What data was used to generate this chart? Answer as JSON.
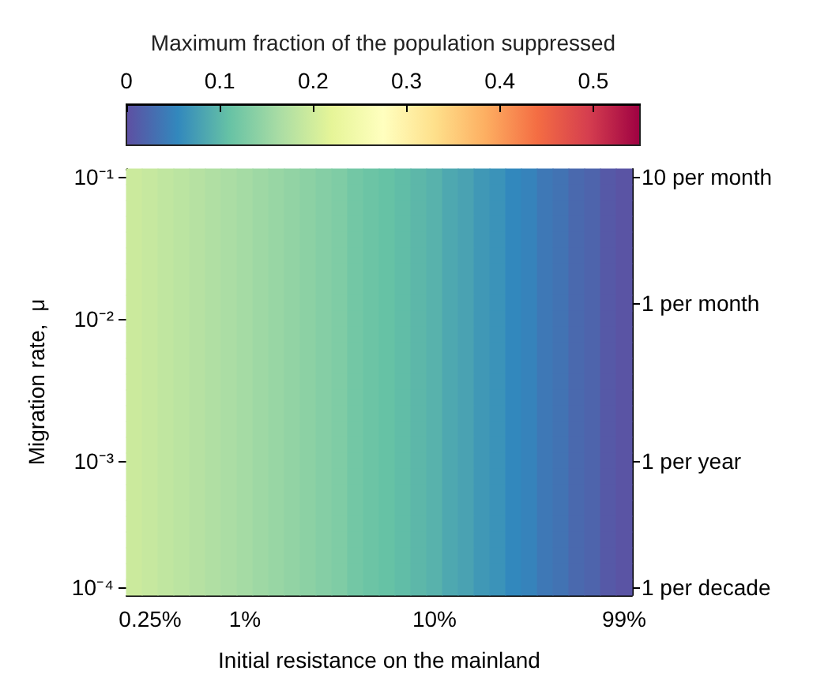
{
  "chart_data": {
    "type": "heatmap",
    "xlabel": "Initial resistance on the mainland",
    "ylabel": "Migration rate,  μ",
    "clabel": "Maximum fraction of the population suppressed",
    "categories": [
      null,
      "0.25%",
      null,
      null,
      null,
      null,
      null,
      "1%",
      null,
      null,
      null,
      null,
      null,
      null,
      null,
      null,
      null,
      null,
      null,
      "10%",
      null,
      null,
      null,
      null,
      null,
      null,
      null,
      null,
      null,
      null,
      null,
      "99%"
    ],
    "y_categories": [
      "10⁻¹",
      null,
      null,
      null,
      null,
      null,
      null,
      null,
      null,
      "10⁻²",
      null,
      null,
      null,
      null,
      null,
      null,
      null,
      null,
      "10⁻³",
      null,
      null,
      null,
      null,
      null,
      null,
      null,
      "10⁻⁴"
    ],
    "y2_categories": [
      "10 per month",
      null,
      null,
      null,
      null,
      null,
      null,
      null,
      "1 per month",
      null,
      null,
      null,
      null,
      null,
      null,
      null,
      null,
      null,
      "1 per year",
      null,
      null,
      null,
      null,
      null,
      null,
      null,
      "1 per decade"
    ],
    "cells": [
      [
        0.195,
        0.19,
        0.185,
        0.18,
        0.175,
        0.17,
        0.165,
        0.16,
        0.155,
        0.15,
        0.145,
        0.14,
        0.135,
        0.13,
        0.12,
        0.115,
        0.11,
        0.105,
        0.1,
        0.095,
        0.085,
        0.08,
        0.07,
        0.065,
        0.055,
        0.05,
        0.04,
        0.035,
        0.025,
        0.02,
        0.01,
        0.005
      ],
      [
        0.195,
        0.19,
        0.185,
        0.18,
        0.175,
        0.17,
        0.165,
        0.16,
        0.155,
        0.15,
        0.145,
        0.14,
        0.135,
        0.13,
        0.12,
        0.115,
        0.11,
        0.105,
        0.1,
        0.095,
        0.085,
        0.08,
        0.07,
        0.065,
        0.055,
        0.05,
        0.04,
        0.035,
        0.025,
        0.02,
        0.01,
        0.005
      ],
      [
        0.195,
        0.19,
        0.185,
        0.18,
        0.175,
        0.17,
        0.165,
        0.16,
        0.155,
        0.15,
        0.145,
        0.14,
        0.135,
        0.13,
        0.12,
        0.115,
        0.11,
        0.105,
        0.1,
        0.095,
        0.085,
        0.08,
        0.07,
        0.065,
        0.055,
        0.05,
        0.04,
        0.035,
        0.025,
        0.02,
        0.01,
        0.005
      ],
      [
        0.195,
        0.19,
        0.185,
        0.18,
        0.175,
        0.17,
        0.165,
        0.16,
        0.155,
        0.15,
        0.145,
        0.14,
        0.135,
        0.13,
        0.12,
        0.115,
        0.11,
        0.105,
        0.1,
        0.095,
        0.085,
        0.08,
        0.07,
        0.065,
        0.055,
        0.05,
        0.04,
        0.035,
        0.025,
        0.02,
        0.01,
        0.005
      ],
      [
        0.195,
        0.19,
        0.185,
        0.18,
        0.175,
        0.17,
        0.165,
        0.16,
        0.155,
        0.15,
        0.145,
        0.14,
        0.135,
        0.13,
        0.12,
        0.115,
        0.11,
        0.105,
        0.1,
        0.095,
        0.085,
        0.08,
        0.07,
        0.065,
        0.055,
        0.05,
        0.04,
        0.035,
        0.025,
        0.02,
        0.01,
        0.005
      ],
      [
        0.195,
        0.19,
        0.185,
        0.18,
        0.175,
        0.17,
        0.165,
        0.16,
        0.155,
        0.15,
        0.145,
        0.14,
        0.135,
        0.13,
        0.12,
        0.115,
        0.11,
        0.105,
        0.1,
        0.095,
        0.085,
        0.08,
        0.07,
        0.065,
        0.055,
        0.05,
        0.04,
        0.035,
        0.025,
        0.02,
        0.01,
        0.005
      ],
      [
        0.195,
        0.19,
        0.185,
        0.18,
        0.175,
        0.17,
        0.165,
        0.16,
        0.155,
        0.15,
        0.145,
        0.14,
        0.135,
        0.13,
        0.12,
        0.115,
        0.11,
        0.105,
        0.1,
        0.095,
        0.085,
        0.08,
        0.07,
        0.065,
        0.055,
        0.05,
        0.04,
        0.035,
        0.025,
        0.02,
        0.01,
        0.005
      ],
      [
        0.195,
        0.19,
        0.185,
        0.18,
        0.175,
        0.17,
        0.165,
        0.16,
        0.155,
        0.15,
        0.145,
        0.14,
        0.135,
        0.13,
        0.12,
        0.115,
        0.11,
        0.105,
        0.1,
        0.095,
        0.085,
        0.08,
        0.07,
        0.065,
        0.055,
        0.05,
        0.04,
        0.035,
        0.025,
        0.02,
        0.01,
        0.005
      ],
      [
        0.195,
        0.19,
        0.185,
        0.18,
        0.175,
        0.17,
        0.165,
        0.16,
        0.155,
        0.15,
        0.145,
        0.14,
        0.135,
        0.13,
        0.12,
        0.115,
        0.11,
        0.105,
        0.1,
        0.095,
        0.085,
        0.08,
        0.07,
        0.065,
        0.055,
        0.05,
        0.04,
        0.035,
        0.025,
        0.02,
        0.01,
        0.005
      ],
      [
        0.195,
        0.19,
        0.185,
        0.18,
        0.175,
        0.17,
        0.165,
        0.16,
        0.155,
        0.15,
        0.145,
        0.14,
        0.135,
        0.13,
        0.12,
        0.115,
        0.11,
        0.105,
        0.1,
        0.095,
        0.085,
        0.08,
        0.07,
        0.065,
        0.055,
        0.05,
        0.04,
        0.035,
        0.025,
        0.02,
        0.01,
        0.005
      ],
      [
        0.195,
        0.19,
        0.185,
        0.18,
        0.175,
        0.17,
        0.165,
        0.16,
        0.155,
        0.15,
        0.145,
        0.14,
        0.135,
        0.13,
        0.12,
        0.115,
        0.11,
        0.105,
        0.1,
        0.095,
        0.085,
        0.08,
        0.07,
        0.065,
        0.055,
        0.05,
        0.04,
        0.035,
        0.025,
        0.02,
        0.01,
        0.005
      ],
      [
        0.195,
        0.19,
        0.185,
        0.18,
        0.175,
        0.17,
        0.165,
        0.16,
        0.155,
        0.15,
        0.145,
        0.14,
        0.135,
        0.13,
        0.12,
        0.115,
        0.11,
        0.105,
        0.1,
        0.095,
        0.085,
        0.08,
        0.07,
        0.065,
        0.055,
        0.05,
        0.04,
        0.035,
        0.025,
        0.02,
        0.01,
        0.005
      ],
      [
        0.195,
        0.19,
        0.185,
        0.18,
        0.175,
        0.17,
        0.165,
        0.16,
        0.155,
        0.15,
        0.145,
        0.14,
        0.135,
        0.13,
        0.12,
        0.115,
        0.11,
        0.105,
        0.1,
        0.095,
        0.085,
        0.08,
        0.07,
        0.065,
        0.055,
        0.05,
        0.04,
        0.035,
        0.025,
        0.02,
        0.01,
        0.005
      ],
      [
        0.195,
        0.19,
        0.185,
        0.18,
        0.175,
        0.17,
        0.165,
        0.16,
        0.155,
        0.15,
        0.145,
        0.14,
        0.135,
        0.13,
        0.12,
        0.115,
        0.11,
        0.105,
        0.1,
        0.095,
        0.085,
        0.08,
        0.07,
        0.065,
        0.055,
        0.05,
        0.04,
        0.035,
        0.025,
        0.02,
        0.01,
        0.005
      ],
      [
        0.195,
        0.19,
        0.185,
        0.18,
        0.175,
        0.17,
        0.165,
        0.16,
        0.155,
        0.15,
        0.145,
        0.14,
        0.135,
        0.13,
        0.12,
        0.115,
        0.11,
        0.105,
        0.1,
        0.095,
        0.085,
        0.08,
        0.07,
        0.065,
        0.055,
        0.05,
        0.04,
        0.035,
        0.025,
        0.02,
        0.01,
        0.005
      ],
      [
        0.195,
        0.19,
        0.185,
        0.18,
        0.175,
        0.17,
        0.165,
        0.16,
        0.155,
        0.15,
        0.145,
        0.14,
        0.135,
        0.13,
        0.12,
        0.115,
        0.11,
        0.105,
        0.1,
        0.095,
        0.085,
        0.08,
        0.07,
        0.065,
        0.055,
        0.05,
        0.04,
        0.035,
        0.025,
        0.02,
        0.01,
        0.005
      ],
      [
        0.195,
        0.19,
        0.185,
        0.18,
        0.175,
        0.17,
        0.165,
        0.16,
        0.155,
        0.15,
        0.145,
        0.14,
        0.135,
        0.13,
        0.12,
        0.115,
        0.11,
        0.105,
        0.1,
        0.095,
        0.085,
        0.08,
        0.07,
        0.065,
        0.055,
        0.05,
        0.04,
        0.035,
        0.025,
        0.02,
        0.01,
        0.005
      ],
      [
        0.195,
        0.19,
        0.185,
        0.18,
        0.175,
        0.17,
        0.165,
        0.16,
        0.155,
        0.15,
        0.145,
        0.14,
        0.135,
        0.13,
        0.12,
        0.115,
        0.11,
        0.105,
        0.1,
        0.095,
        0.085,
        0.08,
        0.07,
        0.065,
        0.055,
        0.05,
        0.04,
        0.035,
        0.025,
        0.02,
        0.01,
        0.005
      ],
      [
        0.195,
        0.19,
        0.185,
        0.18,
        0.175,
        0.17,
        0.165,
        0.16,
        0.155,
        0.15,
        0.145,
        0.14,
        0.135,
        0.13,
        0.12,
        0.115,
        0.11,
        0.105,
        0.1,
        0.095,
        0.085,
        0.08,
        0.07,
        0.065,
        0.055,
        0.05,
        0.04,
        0.035,
        0.025,
        0.02,
        0.01,
        0.005
      ],
      [
        0.195,
        0.19,
        0.185,
        0.18,
        0.175,
        0.17,
        0.165,
        0.16,
        0.155,
        0.15,
        0.145,
        0.14,
        0.135,
        0.13,
        0.12,
        0.115,
        0.11,
        0.105,
        0.1,
        0.095,
        0.085,
        0.08,
        0.07,
        0.065,
        0.055,
        0.05,
        0.04,
        0.035,
        0.025,
        0.02,
        0.01,
        0.005
      ],
      [
        0.195,
        0.19,
        0.185,
        0.18,
        0.175,
        0.17,
        0.165,
        0.16,
        0.155,
        0.15,
        0.145,
        0.14,
        0.135,
        0.13,
        0.12,
        0.115,
        0.11,
        0.105,
        0.1,
        0.095,
        0.085,
        0.08,
        0.07,
        0.065,
        0.055,
        0.05,
        0.04,
        0.035,
        0.025,
        0.02,
        0.01,
        0.005
      ],
      [
        0.195,
        0.19,
        0.185,
        0.18,
        0.175,
        0.17,
        0.165,
        0.16,
        0.155,
        0.15,
        0.145,
        0.14,
        0.135,
        0.13,
        0.12,
        0.115,
        0.11,
        0.105,
        0.1,
        0.095,
        0.085,
        0.08,
        0.07,
        0.065,
        0.055,
        0.05,
        0.04,
        0.035,
        0.025,
        0.02,
        0.01,
        0.005
      ],
      [
        0.195,
        0.19,
        0.185,
        0.18,
        0.175,
        0.17,
        0.165,
        0.16,
        0.155,
        0.15,
        0.145,
        0.14,
        0.135,
        0.13,
        0.12,
        0.115,
        0.11,
        0.105,
        0.1,
        0.095,
        0.085,
        0.08,
        0.07,
        0.065,
        0.055,
        0.05,
        0.04,
        0.035,
        0.025,
        0.02,
        0.01,
        0.005
      ],
      [
        0.195,
        0.19,
        0.185,
        0.18,
        0.175,
        0.17,
        0.165,
        0.16,
        0.155,
        0.15,
        0.145,
        0.14,
        0.135,
        0.13,
        0.12,
        0.115,
        0.11,
        0.105,
        0.1,
        0.095,
        0.085,
        0.08,
        0.07,
        0.065,
        0.055,
        0.05,
        0.04,
        0.035,
        0.025,
        0.02,
        0.01,
        0.005
      ],
      [
        0.195,
        0.19,
        0.185,
        0.18,
        0.175,
        0.17,
        0.165,
        0.16,
        0.155,
        0.15,
        0.145,
        0.14,
        0.135,
        0.13,
        0.12,
        0.115,
        0.11,
        0.105,
        0.1,
        0.095,
        0.085,
        0.08,
        0.07,
        0.065,
        0.055,
        0.05,
        0.04,
        0.035,
        0.025,
        0.02,
        0.01,
        0.005
      ],
      [
        0.195,
        0.19,
        0.185,
        0.18,
        0.175,
        0.17,
        0.165,
        0.16,
        0.155,
        0.15,
        0.145,
        0.14,
        0.135,
        0.13,
        0.12,
        0.115,
        0.11,
        0.105,
        0.1,
        0.095,
        0.085,
        0.08,
        0.07,
        0.065,
        0.055,
        0.05,
        0.04,
        0.035,
        0.025,
        0.02,
        0.01,
        0.005
      ],
      [
        0.195,
        0.19,
        0.185,
        0.18,
        0.175,
        0.17,
        0.165,
        0.16,
        0.155,
        0.15,
        0.145,
        0.14,
        0.135,
        0.13,
        0.12,
        0.115,
        0.11,
        0.105,
        0.1,
        0.095,
        0.085,
        0.08,
        0.07,
        0.065,
        0.055,
        0.05,
        0.04,
        0.035,
        0.025,
        0.02,
        0.01,
        0.005
      ]
    ],
    "clim": [
      0,
      0.55
    ],
    "cticks": [
      0,
      0.1,
      0.2,
      0.3,
      0.4,
      0.5
    ]
  }
}
